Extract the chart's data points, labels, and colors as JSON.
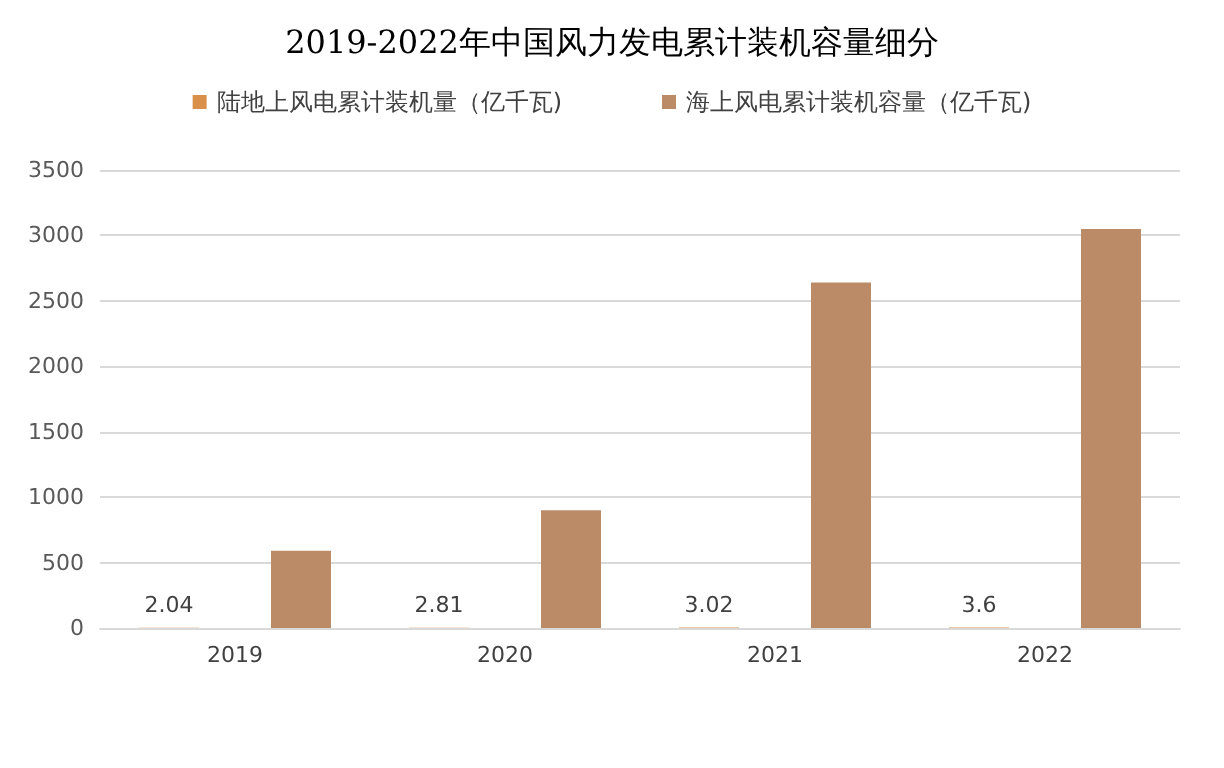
{
  "chart_data": {
    "type": "bar",
    "title": "2019-2022年中国风力发电累计装机容量细分",
    "categories": [
      "2019",
      "2020",
      "2021",
      "2022"
    ],
    "series": [
      {
        "name": "陆地上风电累计装机量（亿千瓦)",
        "color": "#d9904a",
        "values": [
          2.04,
          2.81,
          3.02,
          3.6
        ],
        "value_labels": [
          "2.04",
          "2.81",
          "3.02",
          "3.6"
        ]
      },
      {
        "name": "海上风电累计装机容量（亿千瓦)",
        "color": "#bb8b68",
        "values": [
          590,
          900,
          2640,
          3050
        ]
      }
    ],
    "ylim": [
      0,
      3500
    ],
    "yticks": [
      0,
      500,
      1000,
      1500,
      2000,
      2500,
      3000,
      3500
    ],
    "grid": "y",
    "legend": "top"
  }
}
